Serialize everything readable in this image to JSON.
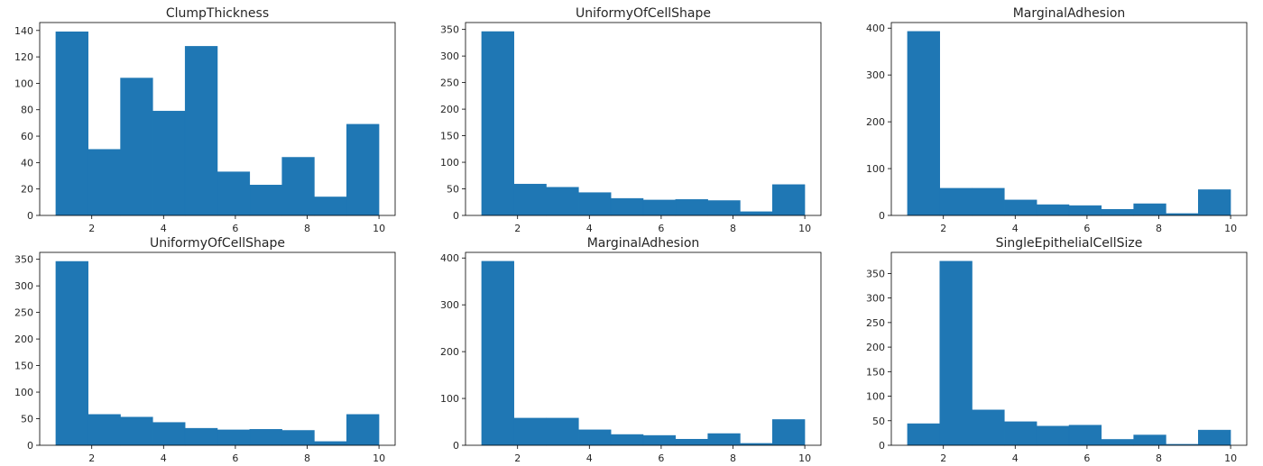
{
  "colors": {
    "bar": "#1f77b4",
    "bar_edge": "#1f77b4",
    "axes": "#000000",
    "text": "#262626"
  },
  "chart_data": [
    {
      "type": "bar",
      "title": "ClumpThickness",
      "xlabel": "",
      "ylabel": "",
      "bin_edges": [
        1.0,
        1.9,
        2.8,
        3.7,
        4.6,
        5.5,
        6.4,
        7.3,
        8.2,
        9.1,
        10.0
      ],
      "values": [
        139,
        50,
        104,
        79,
        128,
        33,
        23,
        44,
        14,
        69
      ],
      "xlim": [
        0.55,
        10.45
      ],
      "ylim": [
        0,
        146
      ],
      "xticks": [
        2,
        4,
        6,
        8,
        10
      ],
      "yticks": [
        0,
        20,
        40,
        60,
        80,
        100,
        120,
        140
      ]
    },
    {
      "type": "bar",
      "title": "UniformyOfCellShape",
      "xlabel": "",
      "ylabel": "",
      "bin_edges": [
        1.0,
        1.9,
        2.8,
        3.7,
        4.6,
        5.5,
        6.4,
        7.3,
        8.2,
        9.1,
        10.0
      ],
      "values": [
        346,
        59,
        53,
        43,
        32,
        29,
        30,
        28,
        7,
        58
      ],
      "xlim": [
        0.55,
        10.45
      ],
      "ylim": [
        0,
        363
      ],
      "xticks": [
        2,
        4,
        6,
        8,
        10
      ],
      "yticks": [
        0,
        50,
        100,
        150,
        200,
        250,
        300,
        350
      ]
    },
    {
      "type": "bar",
      "title": "MarginalAdhesion",
      "xlabel": "",
      "ylabel": "",
      "bin_edges": [
        1.0,
        1.9,
        2.8,
        3.7,
        4.6,
        5.5,
        6.4,
        7.3,
        8.2,
        9.1,
        10.0
      ],
      "values": [
        393,
        58,
        58,
        33,
        23,
        21,
        13,
        25,
        4,
        55
      ],
      "xlim": [
        0.55,
        10.45
      ],
      "ylim": [
        0,
        412
      ],
      "xticks": [
        2,
        4,
        6,
        8,
        10
      ],
      "yticks": [
        0,
        100,
        200,
        300,
        400
      ]
    },
    {
      "type": "bar",
      "title": "UniformyOfCellShape",
      "xlabel": "",
      "ylabel": "",
      "bin_edges": [
        1.0,
        1.9,
        2.8,
        3.7,
        4.6,
        5.5,
        6.4,
        7.3,
        8.2,
        9.1,
        10.0
      ],
      "values": [
        346,
        58,
        53,
        43,
        32,
        29,
        30,
        28,
        7,
        58
      ],
      "xlim": [
        0.55,
        10.45
      ],
      "ylim": [
        0,
        363
      ],
      "xticks": [
        2,
        4,
        6,
        8,
        10
      ],
      "yticks": [
        0,
        50,
        100,
        150,
        200,
        250,
        300,
        350
      ]
    },
    {
      "type": "bar",
      "title": "MarginalAdhesion",
      "xlabel": "",
      "ylabel": "",
      "bin_edges": [
        1.0,
        1.9,
        2.8,
        3.7,
        4.6,
        5.5,
        6.4,
        7.3,
        8.2,
        9.1,
        10.0
      ],
      "values": [
        393,
        58,
        58,
        33,
        23,
        21,
        13,
        25,
        4,
        55
      ],
      "xlim": [
        0.55,
        10.45
      ],
      "ylim": [
        0,
        412
      ],
      "xticks": [
        2,
        4,
        6,
        8,
        10
      ],
      "yticks": [
        0,
        100,
        200,
        300,
        400
      ]
    },
    {
      "type": "bar",
      "title": "SingleEpithelialCellSize",
      "xlabel": "",
      "ylabel": "",
      "bin_edges": [
        1.0,
        1.9,
        2.8,
        3.7,
        4.6,
        5.5,
        6.4,
        7.3,
        8.2,
        9.1,
        10.0
      ],
      "values": [
        44,
        375,
        72,
        48,
        39,
        41,
        12,
        21,
        2,
        31
      ],
      "xlim": [
        0.55,
        10.45
      ],
      "ylim": [
        0,
        393
      ],
      "xticks": [
        2,
        4,
        6,
        8,
        10
      ],
      "yticks": [
        0,
        50,
        100,
        150,
        200,
        250,
        300,
        350
      ]
    }
  ]
}
